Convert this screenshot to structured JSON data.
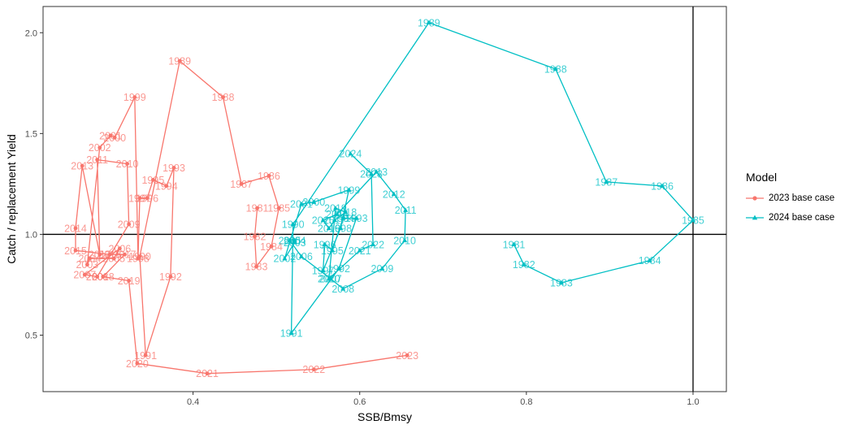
{
  "chart_data": {
    "type": "line",
    "xlabel": "SSB/Bmsy",
    "ylabel": "Catch / replacement Yield",
    "xlim": [
      0.22,
      1.04
    ],
    "ylim": [
      0.22,
      2.13
    ],
    "x_ticks": [
      0.4,
      0.6,
      0.8,
      1.0
    ],
    "x_tick_labels": [
      "0.4",
      "0.6",
      "0.8",
      "1.0"
    ],
    "y_ticks": [
      0.5,
      1.0,
      1.5,
      2.0
    ],
    "y_tick_labels": [
      "0.5",
      "1.0",
      "1.5",
      "2.0"
    ],
    "reference_lines": {
      "x": 1.0,
      "y": 1.0
    },
    "grid": false,
    "legend": {
      "title": "Model",
      "position": "right"
    },
    "series": [
      {
        "name": "2023 base case",
        "color": "#F8766D",
        "marker": "circle",
        "points": [
          {
            "year": "1981",
            "x": 0.477,
            "y": 1.13
          },
          {
            "year": "1982",
            "x": 0.474,
            "y": 0.99
          },
          {
            "year": "1983",
            "x": 0.476,
            "y": 0.84
          },
          {
            "year": "1984",
            "x": 0.494,
            "y": 0.94
          },
          {
            "year": "1985",
            "x": 0.503,
            "y": 1.13
          },
          {
            "year": "1986",
            "x": 0.491,
            "y": 1.29
          },
          {
            "year": "1987",
            "x": 0.458,
            "y": 1.25
          },
          {
            "year": "1988",
            "x": 0.436,
            "y": 1.68
          },
          {
            "year": "1989",
            "x": 0.384,
            "y": 1.86
          },
          {
            "year": "1990",
            "x": 0.336,
            "y": 0.89
          },
          {
            "year": "1991",
            "x": 0.343,
            "y": 0.4
          },
          {
            "year": "1992",
            "x": 0.373,
            "y": 0.79
          },
          {
            "year": "1993",
            "x": 0.377,
            "y": 1.33
          },
          {
            "year": "1994",
            "x": 0.368,
            "y": 1.24
          },
          {
            "year": "1995",
            "x": 0.352,
            "y": 1.27
          },
          {
            "year": "1996",
            "x": 0.345,
            "y": 1.18
          },
          {
            "year": "1997",
            "x": 0.336,
            "y": 1.18
          },
          {
            "year": "1998",
            "x": 0.334,
            "y": 0.88
          },
          {
            "year": "1999",
            "x": 0.33,
            "y": 1.68
          },
          {
            "year": "2000",
            "x": 0.306,
            "y": 1.48
          },
          {
            "year": "2001",
            "x": 0.301,
            "y": 1.49
          },
          {
            "year": "2002",
            "x": 0.288,
            "y": 1.43
          },
          {
            "year": "2003",
            "x": 0.273,
            "y": 0.85
          },
          {
            "year": "2004",
            "x": 0.276,
            "y": 0.88
          },
          {
            "year": "2005",
            "x": 0.305,
            "y": 0.88
          },
          {
            "year": "2006",
            "x": 0.312,
            "y": 0.93
          },
          {
            "year": "2007",
            "x": 0.27,
            "y": 0.8
          },
          {
            "year": "2008",
            "x": 0.285,
            "y": 0.79
          },
          {
            "year": "2009",
            "x": 0.323,
            "y": 1.05
          },
          {
            "year": "2010",
            "x": 0.321,
            "y": 1.35
          },
          {
            "year": "2011",
            "x": 0.285,
            "y": 1.37
          },
          {
            "year": "2012",
            "x": 0.288,
            "y": 0.9
          },
          {
            "year": "2013",
            "x": 0.267,
            "y": 1.34
          },
          {
            "year": "2014",
            "x": 0.259,
            "y": 1.03
          },
          {
            "year": "2015",
            "x": 0.259,
            "y": 0.92
          },
          {
            "year": "2016",
            "x": 0.3,
            "y": 0.9
          },
          {
            "year": "2017",
            "x": 0.318,
            "y": 0.9
          },
          {
            "year": "2018",
            "x": 0.292,
            "y": 0.79
          },
          {
            "year": "2019",
            "x": 0.323,
            "y": 0.77
          },
          {
            "year": "2020",
            "x": 0.333,
            "y": 0.36
          },
          {
            "year": "2021",
            "x": 0.417,
            "y": 0.31
          },
          {
            "year": "2022",
            "x": 0.545,
            "y": 0.33
          },
          {
            "year": "2023",
            "x": 0.657,
            "y": 0.4
          }
        ]
      },
      {
        "name": "2024 base case",
        "color": "#00BFC4",
        "marker": "triangle",
        "points": [
          {
            "year": "1981",
            "x": 0.785,
            "y": 0.95
          },
          {
            "year": "1982",
            "x": 0.797,
            "y": 0.85
          },
          {
            "year": "1983",
            "x": 0.842,
            "y": 0.76
          },
          {
            "year": "1984",
            "x": 0.948,
            "y": 0.87
          },
          {
            "year": "1985",
            "x": 1.0,
            "y": 1.07
          },
          {
            "year": "1986",
            "x": 0.963,
            "y": 1.24
          },
          {
            "year": "1987",
            "x": 0.896,
            "y": 1.26
          },
          {
            "year": "1988",
            "x": 0.835,
            "y": 1.82
          },
          {
            "year": "1989",
            "x": 0.683,
            "y": 2.05
          },
          {
            "year": "1990",
            "x": 0.52,
            "y": 1.05
          },
          {
            "year": "1991",
            "x": 0.518,
            "y": 0.51
          },
          {
            "year": "1992",
            "x": 0.575,
            "y": 0.83
          },
          {
            "year": "1993",
            "x": 0.596,
            "y": 1.08
          },
          {
            "year": "1994",
            "x": 0.58,
            "y": 1.08
          },
          {
            "year": "1995",
            "x": 0.567,
            "y": 0.92
          },
          {
            "year": "1996",
            "x": 0.558,
            "y": 0.95
          },
          {
            "year": "1997",
            "x": 0.556,
            "y": 0.82
          },
          {
            "year": "1998",
            "x": 0.577,
            "y": 1.03
          },
          {
            "year": "1999",
            "x": 0.587,
            "y": 1.22
          },
          {
            "year": "2000",
            "x": 0.545,
            "y": 1.16
          },
          {
            "year": "2001",
            "x": 0.53,
            "y": 1.15
          },
          {
            "year": "2002",
            "x": 0.51,
            "y": 0.88
          },
          {
            "year": "2003",
            "x": 0.522,
            "y": 0.96
          },
          {
            "year": "2004",
            "x": 0.522,
            "y": 0.97
          },
          {
            "year": "2005",
            "x": 0.516,
            "y": 0.97
          },
          {
            "year": "2006",
            "x": 0.53,
            "y": 0.89
          },
          {
            "year": "2007",
            "x": 0.565,
            "y": 0.78
          },
          {
            "year": "2008",
            "x": 0.58,
            "y": 0.73
          },
          {
            "year": "2009",
            "x": 0.627,
            "y": 0.83
          },
          {
            "year": "2010",
            "x": 0.654,
            "y": 0.97
          },
          {
            "year": "2011",
            "x": 0.655,
            "y": 1.12
          },
          {
            "year": "2012",
            "x": 0.641,
            "y": 1.2
          },
          {
            "year": "2013",
            "x": 0.62,
            "y": 1.31
          },
          {
            "year": "2014",
            "x": 0.573,
            "y": 1.1
          },
          {
            "year": "2015",
            "x": 0.556,
            "y": 1.07
          },
          {
            "year": "2016",
            "x": 0.563,
            "y": 1.03
          },
          {
            "year": "2017",
            "x": 0.57,
            "y": 1.07
          },
          {
            "year": "2018",
            "x": 0.583,
            "y": 1.11
          },
          {
            "year": "2019",
            "x": 0.571,
            "y": 1.13
          },
          {
            "year": "2020",
            "x": 0.563,
            "y": 0.78
          },
          {
            "year": "2021",
            "x": 0.6,
            "y": 0.92
          },
          {
            "year": "2022",
            "x": 0.616,
            "y": 0.95
          },
          {
            "year": "2023",
            "x": 0.614,
            "y": 1.3
          },
          {
            "year": "2024",
            "x": 0.589,
            "y": 1.4
          }
        ]
      }
    ]
  }
}
